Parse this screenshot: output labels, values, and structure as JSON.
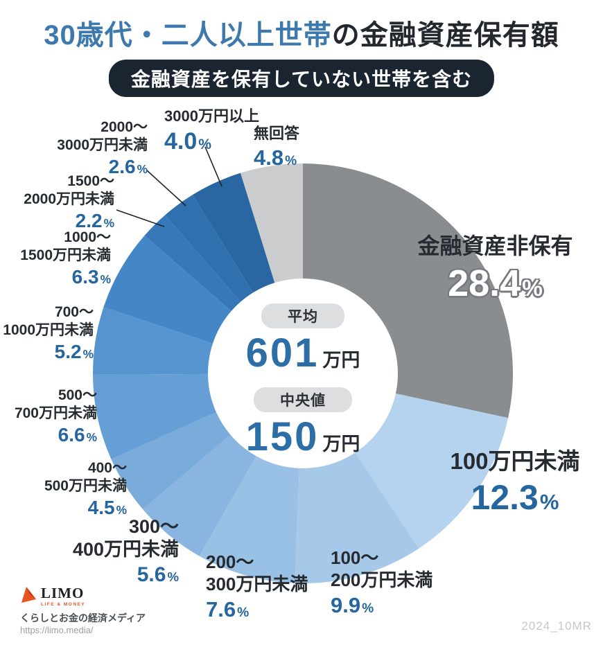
{
  "title": {
    "highlight": "30歳代・二人以上世帯",
    "rest": "の金融資産保有額"
  },
  "badge": "金融資産を保有していない世帯を含む",
  "chart_data": {
    "type": "pie",
    "subtype": "donut",
    "title": "30歳代・二人以上世帯の金融資産保有額",
    "subtitle": "金融資産を保有していない世帯を含む",
    "unit": "%",
    "order": "clockwise-from-top",
    "segments": [
      {
        "id": "none",
        "label_lines": [
          "金融資産非保有"
        ],
        "value": 28.4,
        "color": "#8a8d90"
      },
      {
        "id": "lt100",
        "label_lines": [
          "100万円未満"
        ],
        "value": 12.3,
        "color": "#b5d2ee"
      },
      {
        "id": "100-200",
        "label_lines": [
          "100〜",
          "200万円未満"
        ],
        "value": 9.9,
        "color": "#a7c9e9"
      },
      {
        "id": "200-300",
        "label_lines": [
          "200〜",
          "300万円未満"
        ],
        "value": 7.6,
        "color": "#99c0e5"
      },
      {
        "id": "300-400",
        "label_lines": [
          "300〜",
          "400万円未満"
        ],
        "value": 5.6,
        "color": "#89b5e0"
      },
      {
        "id": "400-500",
        "label_lines": [
          "400〜",
          "500万円未満"
        ],
        "value": 4.5,
        "color": "#79abdb"
      },
      {
        "id": "500-700",
        "label_lines": [
          "500〜",
          "700万円未満"
        ],
        "value": 6.6,
        "color": "#669fd5"
      },
      {
        "id": "700-1000",
        "label_lines": [
          "700〜",
          "1000万円未満"
        ],
        "value": 5.2,
        "color": "#5694cf"
      },
      {
        "id": "1000-1500",
        "label_lines": [
          "1000〜",
          "1500万円未満"
        ],
        "value": 6.3,
        "color": "#4487c7"
      },
      {
        "id": "1500-2000",
        "label_lines": [
          "1500〜",
          "2000万円未満"
        ],
        "value": 2.2,
        "color": "#3779b8"
      },
      {
        "id": "2000-3000",
        "label_lines": [
          "2000〜",
          "3000万円未満"
        ],
        "value": 2.6,
        "color": "#3070ae"
      },
      {
        "id": "3000plus",
        "label_lines": [
          "3000万円以上"
        ],
        "value": 4.0,
        "color": "#2a67a2"
      },
      {
        "id": "no-answer",
        "label_lines": [
          "無回答"
        ],
        "value": 4.8,
        "color": "#cbcccd"
      }
    ],
    "center_stats": [
      {
        "label": "平均",
        "value": "601",
        "unit": "万円"
      },
      {
        "label": "中央値",
        "value": "150",
        "unit": "万円"
      }
    ],
    "legend_position": "around-donut"
  },
  "colors": {
    "title_highlight": "#3e79ae",
    "title_text": "#23282e",
    "badge_bg": "#1b2431",
    "pct_blue": "#25669f",
    "center_value_blue": "#2c6ea6",
    "pill_bg": "#dcdee0",
    "logo_orange": "#e8541f"
  },
  "footer": {
    "logo_text": "LIMO",
    "logo_sub": "LIFE & MONEY",
    "tagline": "くらしとお金の経済メディア",
    "url": "https://limo.media/",
    "code": "2024_10MR"
  }
}
